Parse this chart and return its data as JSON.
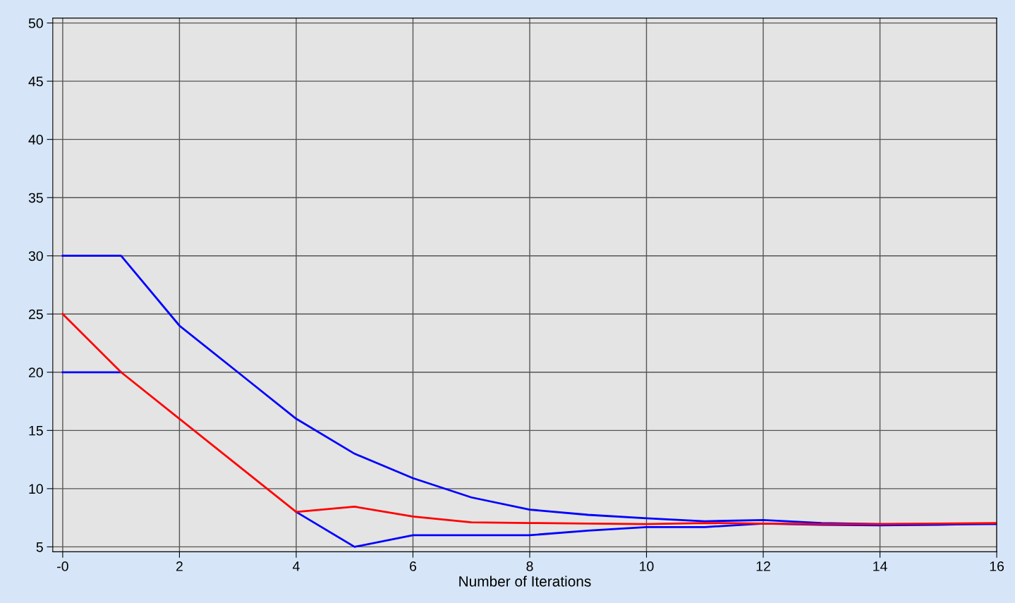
{
  "chart_data": {
    "type": "line",
    "xlabel": "Number of Iterations",
    "x": [
      0,
      1,
      2,
      3,
      4,
      5,
      6,
      7,
      8,
      9,
      10,
      11,
      12,
      13,
      14,
      15,
      16
    ],
    "series": [
      {
        "color": "#0000ff",
        "values": [
          30,
          30,
          24,
          20,
          16,
          13,
          10.9,
          9.25,
          8.2,
          7.75,
          7.45,
          7.2,
          7.3,
          7.05,
          6.95,
          6.95,
          6.95
        ]
      },
      {
        "color": "#0000ff",
        "values": [
          20,
          20,
          null,
          null,
          8,
          5,
          6,
          6,
          6,
          6.4,
          6.7,
          6.7,
          7,
          6.9,
          6.85,
          6.9,
          7
        ]
      },
      {
        "color": "#ff0000",
        "values": [
          25,
          20,
          16,
          12,
          8,
          8.45,
          7.6,
          7.1,
          7.05,
          7,
          6.95,
          7.05,
          7,
          6.95,
          6.95,
          7,
          7.05
        ]
      }
    ],
    "xlim": [
      -0.17,
      16
    ],
    "ylim": [
      4.58,
      50.42
    ],
    "xticks": [
      {
        "value": 0,
        "label": "-0"
      },
      2,
      4,
      6,
      8,
      10,
      12,
      14,
      16
    ],
    "yticks": [
      5,
      10,
      15,
      20,
      25,
      30,
      35,
      40,
      45,
      50
    ],
    "grid": true,
    "marker": "none",
    "line_style": "solid"
  }
}
